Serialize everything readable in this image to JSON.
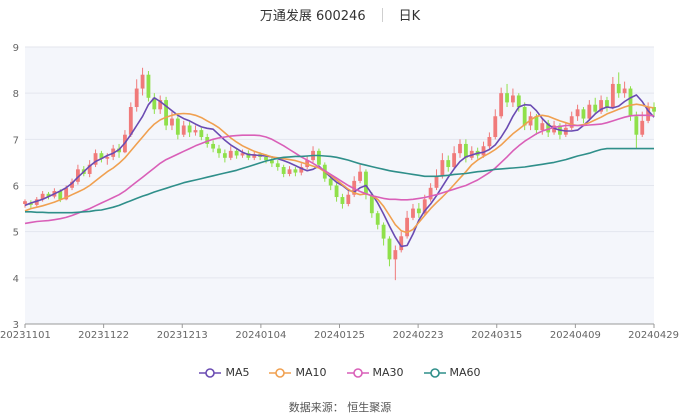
{
  "header": {
    "title": "万通发展 600246",
    "period": "日K"
  },
  "source": "数据来源：  恒生聚源",
  "chart_data": {
    "type": "line",
    "subtype": "candlestick-with-moving-averages",
    "ylim": [
      3,
      9
    ],
    "y_ticks": [
      "3",
      "4",
      "5",
      "6",
      "7",
      "8",
      "9"
    ],
    "x_tick_labels": [
      "20231101",
      "20231122",
      "20231213",
      "20240104",
      "20240125",
      "20240223",
      "20240315",
      "20240409",
      "20240429"
    ],
    "grid": "horizontal",
    "legend_position": "bottom",
    "colors": {
      "up": "#f07a7a",
      "down": "#8fe04a",
      "MA5": "#6a4bb2",
      "MA10": "#f0a050",
      "MA30": "#d95fb8",
      "MA60": "#2f8f8a"
    },
    "series": [
      {
        "name": "MA5",
        "values": [
          5.57,
          5.62,
          5.66,
          5.7,
          5.76,
          5.82,
          5.88,
          5.95,
          6.05,
          6.18,
          6.3,
          6.42,
          6.52,
          6.58,
          6.65,
          6.7,
          6.78,
          6.92,
          7.1,
          7.3,
          7.5,
          7.75,
          7.9,
          7.82,
          7.72,
          7.62,
          7.52,
          7.45,
          7.4,
          7.33,
          7.27,
          7.24,
          7.22,
          7.1,
          6.98,
          6.88,
          6.8,
          6.72,
          6.67,
          6.66,
          6.65,
          6.64,
          6.62,
          6.58,
          6.54,
          6.49,
          6.43,
          6.37,
          6.32,
          6.35,
          6.42,
          6.3,
          6.18,
          6.07,
          6.0,
          5.9,
          5.86,
          5.95,
          6.0,
          5.82,
          5.62,
          5.38,
          5.12,
          4.88,
          4.68,
          4.7,
          4.95,
          5.25,
          5.45,
          5.6,
          5.78,
          5.98,
          6.18,
          6.36,
          6.52,
          6.62,
          6.66,
          6.7,
          6.72,
          6.78,
          6.88,
          7.05,
          7.25,
          7.5,
          7.7,
          7.75,
          7.74,
          7.62,
          7.45,
          7.32,
          7.24,
          7.2,
          7.18,
          7.18,
          7.2,
          7.3,
          7.42,
          7.55,
          7.65,
          7.7,
          7.68,
          7.72,
          7.82,
          7.9,
          7.96,
          7.82,
          7.62,
          7.48
        ]
      },
      {
        "name": "MA10",
        "values": [
          5.45,
          5.5,
          5.53,
          5.56,
          5.6,
          5.64,
          5.69,
          5.74,
          5.8,
          5.86,
          5.92,
          6.0,
          6.1,
          6.2,
          6.3,
          6.38,
          6.48,
          6.6,
          6.75,
          6.9,
          7.05,
          7.2,
          7.33,
          7.42,
          7.48,
          7.52,
          7.55,
          7.56,
          7.55,
          7.52,
          7.47,
          7.4,
          7.33,
          7.25,
          7.14,
          7.03,
          6.94,
          6.86,
          6.8,
          6.74,
          6.7,
          6.66,
          6.62,
          6.6,
          6.58,
          6.56,
          6.54,
          6.5,
          6.46,
          6.42,
          6.38,
          6.3,
          6.22,
          6.12,
          6.02,
          5.92,
          5.84,
          5.8,
          5.82,
          5.78,
          5.7,
          5.55,
          5.35,
          5.15,
          5.02,
          4.98,
          5.05,
          5.2,
          5.35,
          5.5,
          5.63,
          5.75,
          5.88,
          6.02,
          6.16,
          6.3,
          6.45,
          6.55,
          6.63,
          6.7,
          6.78,
          6.88,
          7.0,
          7.12,
          7.22,
          7.32,
          7.42,
          7.5,
          7.52,
          7.5,
          7.45,
          7.4,
          7.36,
          7.32,
          7.3,
          7.32,
          7.36,
          7.42,
          7.48,
          7.55,
          7.6,
          7.65,
          7.7,
          7.74,
          7.76,
          7.74,
          7.7,
          7.68
        ]
      },
      {
        "name": "MA30",
        "values": [
          5.18,
          5.2,
          5.22,
          5.23,
          5.24,
          5.26,
          5.28,
          5.31,
          5.35,
          5.4,
          5.45,
          5.5,
          5.56,
          5.62,
          5.68,
          5.74,
          5.8,
          5.88,
          5.98,
          6.08,
          6.18,
          6.28,
          6.38,
          6.48,
          6.56,
          6.62,
          6.68,
          6.74,
          6.8,
          6.86,
          6.91,
          6.96,
          7.0,
          7.03,
          7.05,
          7.07,
          7.08,
          7.09,
          7.09,
          7.09,
          7.08,
          7.05,
          7.0,
          6.93,
          6.86,
          6.78,
          6.7,
          6.62,
          6.55,
          6.48,
          6.4,
          6.32,
          6.24,
          6.16,
          6.08,
          6.0,
          5.93,
          5.87,
          5.82,
          5.78,
          5.75,
          5.72,
          5.7,
          5.7,
          5.69,
          5.69,
          5.7,
          5.72,
          5.74,
          5.77,
          5.8,
          5.84,
          5.88,
          5.92,
          5.96,
          6.0,
          6.06,
          6.12,
          6.2,
          6.28,
          6.38,
          6.5,
          6.62,
          6.75,
          6.86,
          6.96,
          7.04,
          7.12,
          7.18,
          7.22,
          7.26,
          7.28,
          7.3,
          7.3,
          7.3,
          7.3,
          7.31,
          7.32,
          7.33,
          7.36,
          7.4,
          7.44,
          7.48,
          7.51,
          7.52,
          7.52,
          7.52,
          7.51
        ]
      },
      {
        "name": "MA60",
        "values": [
          5.43,
          5.43,
          5.42,
          5.42,
          5.41,
          5.41,
          5.41,
          5.41,
          5.41,
          5.42,
          5.43,
          5.44,
          5.46,
          5.47,
          5.5,
          5.53,
          5.57,
          5.62,
          5.67,
          5.72,
          5.77,
          5.81,
          5.86,
          5.9,
          5.94,
          5.98,
          6.02,
          6.06,
          6.09,
          6.12,
          6.15,
          6.18,
          6.21,
          6.24,
          6.27,
          6.3,
          6.33,
          6.37,
          6.41,
          6.45,
          6.49,
          6.53,
          6.56,
          6.59,
          6.61,
          6.62,
          6.63,
          6.63,
          6.64,
          6.65,
          6.65,
          6.64,
          6.63,
          6.61,
          6.58,
          6.55,
          6.51,
          6.47,
          6.44,
          6.41,
          6.38,
          6.35,
          6.32,
          6.3,
          6.28,
          6.26,
          6.24,
          6.22,
          6.2,
          6.2,
          6.2,
          6.21,
          6.22,
          6.24,
          6.25,
          6.26,
          6.28,
          6.3,
          6.31,
          6.33,
          6.35,
          6.36,
          6.37,
          6.38,
          6.39,
          6.4,
          6.42,
          6.44,
          6.46,
          6.48,
          6.5,
          6.53,
          6.56,
          6.6,
          6.64,
          6.67,
          6.7,
          6.74,
          6.78,
          6.8,
          6.8,
          6.8,
          6.8,
          6.8,
          6.8,
          6.8,
          6.8,
          6.8
        ]
      }
    ],
    "candles": [
      [
        5.6,
        5.66,
        5.7,
        5.52
      ],
      [
        5.62,
        5.58,
        5.68,
        5.5
      ],
      [
        5.58,
        5.7,
        5.75,
        5.55
      ],
      [
        5.7,
        5.82,
        5.88,
        5.65
      ],
      [
        5.82,
        5.76,
        5.86,
        5.7
      ],
      [
        5.76,
        5.88,
        5.94,
        5.72
      ],
      [
        5.88,
        5.7,
        5.92,
        5.64
      ],
      [
        5.7,
        5.95,
        6.0,
        5.68
      ],
      [
        5.95,
        6.08,
        6.15,
        5.9
      ],
      [
        6.08,
        6.35,
        6.45,
        6.02
      ],
      [
        6.35,
        6.25,
        6.42,
        6.2
      ],
      [
        6.25,
        6.45,
        6.55,
        6.18
      ],
      [
        6.45,
        6.7,
        6.78,
        6.4
      ],
      [
        6.7,
        6.58,
        6.75,
        6.5
      ],
      [
        6.58,
        6.62,
        6.7,
        6.45
      ],
      [
        6.62,
        6.8,
        6.88,
        6.55
      ],
      [
        6.8,
        6.72,
        6.9,
        6.6
      ],
      [
        6.72,
        7.1,
        7.2,
        6.7
      ],
      [
        7.1,
        7.7,
        7.8,
        7.05
      ],
      [
        7.7,
        8.1,
        8.3,
        7.6
      ],
      [
        8.1,
        8.4,
        8.55,
        7.95
      ],
      [
        8.4,
        7.9,
        8.48,
        7.82
      ],
      [
        7.9,
        7.65,
        8.0,
        7.55
      ],
      [
        7.65,
        7.85,
        7.95,
        7.55
      ],
      [
        7.85,
        7.3,
        7.92,
        7.2
      ],
      [
        7.3,
        7.45,
        7.6,
        7.2
      ],
      [
        7.45,
        7.1,
        7.5,
        7.0
      ],
      [
        7.1,
        7.3,
        7.4,
        7.05
      ],
      [
        7.3,
        7.15,
        7.38,
        7.05
      ],
      [
        7.15,
        7.2,
        7.3,
        7.08
      ],
      [
        7.2,
        7.05,
        7.25,
        6.98
      ],
      [
        7.05,
        6.9,
        7.12,
        6.82
      ],
      [
        6.9,
        6.8,
        6.98,
        6.72
      ],
      [
        6.8,
        6.7,
        6.88,
        6.6
      ],
      [
        6.7,
        6.6,
        6.78,
        6.5
      ],
      [
        6.6,
        6.75,
        6.85,
        6.55
      ],
      [
        6.75,
        6.65,
        6.8,
        6.58
      ],
      [
        6.65,
        6.7,
        6.78,
        6.6
      ],
      [
        6.7,
        6.6,
        6.76,
        6.55
      ],
      [
        6.6,
        6.68,
        6.75,
        6.55
      ],
      [
        6.68,
        6.62,
        6.72,
        6.55
      ],
      [
        6.62,
        6.55,
        6.68,
        6.48
      ],
      [
        6.55,
        6.48,
        6.62,
        6.4
      ],
      [
        6.48,
        6.4,
        6.55,
        6.32
      ],
      [
        6.4,
        6.25,
        6.45,
        6.18
      ],
      [
        6.25,
        6.35,
        6.42,
        6.2
      ],
      [
        6.35,
        6.28,
        6.4,
        6.2
      ],
      [
        6.28,
        6.4,
        6.48,
        6.22
      ],
      [
        6.4,
        6.55,
        6.65,
        6.35
      ],
      [
        6.55,
        6.75,
        6.85,
        6.5
      ],
      [
        6.75,
        6.45,
        6.8,
        6.38
      ],
      [
        6.45,
        6.15,
        6.5,
        6.08
      ],
      [
        6.15,
        6.0,
        6.22,
        5.9
      ],
      [
        6.0,
        5.75,
        6.05,
        5.65
      ],
      [
        5.75,
        5.6,
        5.82,
        5.5
      ],
      [
        5.6,
        5.8,
        5.9,
        5.55
      ],
      [
        5.8,
        6.1,
        6.2,
        5.75
      ],
      [
        6.1,
        6.3,
        6.45,
        6.05
      ],
      [
        6.3,
        5.8,
        6.35,
        5.7
      ],
      [
        5.8,
        5.4,
        5.85,
        5.3
      ],
      [
        5.4,
        5.15,
        5.45,
        5.05
      ],
      [
        5.15,
        4.85,
        5.2,
        4.7
      ],
      [
        4.85,
        4.4,
        4.9,
        4.25
      ],
      [
        4.4,
        4.6,
        4.7,
        3.95
      ],
      [
        4.6,
        4.9,
        5.0,
        4.55
      ],
      [
        4.9,
        5.3,
        5.45,
        4.85
      ],
      [
        5.3,
        5.5,
        5.6,
        5.25
      ],
      [
        5.5,
        5.4,
        5.62,
        5.3
      ],
      [
        5.4,
        5.7,
        5.8,
        5.35
      ],
      [
        5.7,
        5.95,
        6.05,
        5.65
      ],
      [
        5.95,
        6.2,
        6.35,
        5.9
      ],
      [
        6.2,
        6.55,
        6.7,
        6.15
      ],
      [
        6.55,
        6.4,
        6.65,
        6.3
      ],
      [
        6.4,
        6.7,
        6.85,
        6.35
      ],
      [
        6.7,
        6.9,
        7.0,
        6.6
      ],
      [
        6.9,
        6.6,
        7.0,
        6.5
      ],
      [
        6.6,
        6.75,
        6.85,
        6.55
      ],
      [
        6.75,
        6.65,
        6.82,
        6.58
      ],
      [
        6.65,
        6.85,
        6.95,
        6.6
      ],
      [
        6.85,
        7.05,
        7.15,
        6.8
      ],
      [
        7.05,
        7.5,
        7.65,
        7.0
      ],
      [
        7.5,
        8.0,
        8.12,
        7.45
      ],
      [
        8.0,
        7.8,
        8.2,
        7.7
      ],
      [
        7.8,
        7.95,
        8.1,
        7.7
      ],
      [
        7.95,
        7.7,
        8.0,
        7.6
      ],
      [
        7.7,
        7.3,
        7.8,
        7.2
      ],
      [
        7.3,
        7.5,
        7.6,
        7.2
      ],
      [
        7.5,
        7.2,
        7.55,
        7.1
      ],
      [
        7.2,
        7.35,
        7.45,
        7.1
      ],
      [
        7.35,
        7.15,
        7.42,
        7.05
      ],
      [
        7.15,
        7.3,
        7.4,
        7.1
      ],
      [
        7.3,
        7.1,
        7.35,
        7.0
      ],
      [
        7.1,
        7.25,
        7.35,
        7.05
      ],
      [
        7.25,
        7.5,
        7.6,
        7.2
      ],
      [
        7.5,
        7.65,
        7.75,
        7.4
      ],
      [
        7.65,
        7.45,
        7.7,
        7.35
      ],
      [
        7.45,
        7.75,
        7.85,
        7.4
      ],
      [
        7.75,
        7.6,
        7.9,
        7.55
      ],
      [
        7.6,
        7.85,
        7.95,
        7.55
      ],
      [
        7.85,
        7.7,
        7.92,
        7.6
      ],
      [
        7.7,
        8.2,
        8.35,
        7.65
      ],
      [
        8.2,
        8.0,
        8.45,
        7.9
      ],
      [
        8.0,
        8.1,
        8.25,
        7.9
      ],
      [
        8.1,
        7.5,
        8.15,
        7.4
      ],
      [
        7.5,
        7.1,
        7.6,
        6.8
      ],
      [
        7.1,
        7.4,
        7.6,
        7.05
      ],
      [
        7.4,
        7.7,
        7.8,
        7.35
      ],
      [
        7.7,
        7.6,
        7.8,
        7.5
      ]
    ]
  }
}
